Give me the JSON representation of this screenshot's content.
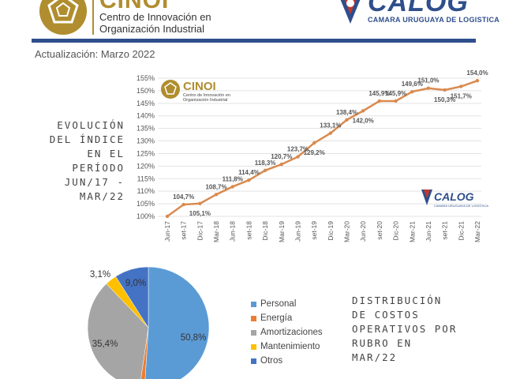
{
  "header": {
    "cinoi_word": "CINOI",
    "cinoi_sub_line1": "Centro de Innovación en",
    "cinoi_sub_line2": "Organización Industrial",
    "calog_word": "CALOG",
    "calog_sub": "CAMARA URUGUAYA DE LOGISTICA",
    "rule_color": "#2f4e8c"
  },
  "update_text": "Actualización: Marzo 2022",
  "line_title_lines": [
    "EVOLUCIÓN",
    "DEL ÍNDICE",
    "EN EL",
    "PERÍODO",
    "JUN/17 -",
    "MAR/22"
  ],
  "chart_logos": {
    "cinoi_word": "CINOI",
    "cinoi_sub_line1": "Centro de Innovación en",
    "cinoi_sub_line2": "Organización Industrial",
    "calog_word": "CALOG",
    "calog_sub": "CAMARA URUGUAYA DE LOGISTICA"
  },
  "pie_title_lines": [
    "DISTRIBUCIÓN",
    "DE COSTOS",
    "OPERATIVOS POR",
    "RUBRO EN",
    "MAR/22"
  ],
  "chart_data": [
    {
      "type": "line",
      "x": [
        "Jun-17",
        "set-17",
        "Dic-17",
        "Mar-18",
        "Jun-18",
        "set-18",
        "Dic-18",
        "Mar-19",
        "Jun-19",
        "set-19",
        "Dic-19",
        "Mar-20",
        "Jun-20",
        "set-20",
        "Dic-20",
        "Mar-21",
        "Jun-21",
        "set-21",
        "Dic-21",
        "Mar-22"
      ],
      "series": [
        {
          "values": [
            100.0,
            104.7,
            105.1,
            108.7,
            111.8,
            114.4,
            118.3,
            120.7,
            123.7,
            129.2,
            133.1,
            138.4,
            142.0,
            145.9,
            145.9,
            149.6,
            151.0,
            150.3,
            151.7,
            154.0
          ],
          "labels": [
            "",
            "104,7%",
            "105,1%",
            "108,7%",
            "111,8%",
            "114,4%",
            "118,3%",
            "120,7%",
            "123,7%",
            "129,2%",
            "133,1%",
            "138,4%",
            "142,0%",
            "145,9%",
            "145,9%",
            "149,6%",
            "151,0%",
            "150,3%",
            "151,7%",
            "154,0%"
          ],
          "color": "#d98a4e"
        }
      ],
      "yticks": [
        "100%",
        "105%",
        "110%",
        "115%",
        "120%",
        "125%",
        "130%",
        "135%",
        "140%",
        "145%",
        "150%",
        "155%"
      ],
      "ylim": [
        100,
        155
      ],
      "grid": true
    },
    {
      "type": "pie",
      "slices": [
        {
          "label": "Personal",
          "value": 50.8,
          "text": "50,8%",
          "color": "#5b9bd5"
        },
        {
          "label": "Energía",
          "value": 1.3,
          "text": "",
          "color": "#ed7d31"
        },
        {
          "label": "Amortizaciones",
          "value": 35.4,
          "text": "35,4%",
          "color": "#a5a5a5"
        },
        {
          "label": "Mantenimiento",
          "value": 3.1,
          "text": "3,1%",
          "color": "#ffc000"
        },
        {
          "label": "Otros",
          "value": 9.0,
          "text": "9,0%",
          "color": "#4472c4"
        }
      ],
      "legend": "right"
    }
  ]
}
